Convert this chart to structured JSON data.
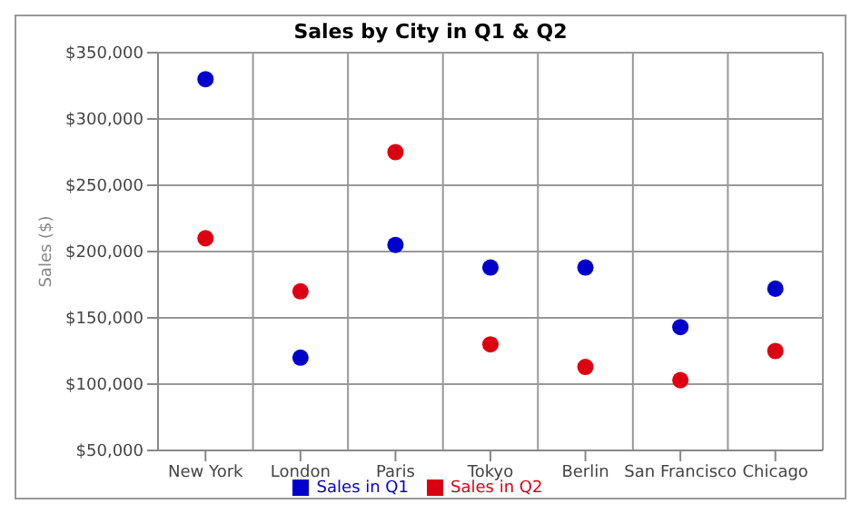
{
  "chart_data": {
    "type": "scatter",
    "title": "Sales by City in Q1 & Q2",
    "ylabel": "Sales ($)",
    "categories": [
      "New York",
      "London",
      "Paris",
      "Tokyo",
      "Berlin",
      "San Francisco",
      "Chicago"
    ],
    "series": [
      {
        "name": "Sales in Q1",
        "color": "#0000cc",
        "values": [
          330000,
          120000,
          205000,
          188000,
          188000,
          143000,
          172000
        ]
      },
      {
        "name": "Sales in Q2",
        "color": "#dd0011",
        "values": [
          210000,
          170000,
          275000,
          130000,
          113000,
          103000,
          125000
        ]
      }
    ],
    "ylim": [
      50000,
      350000
    ],
    "yticks": [
      {
        "value": 50000,
        "label": "$50,000"
      },
      {
        "value": 100000,
        "label": "$100,000"
      },
      {
        "value": 150000,
        "label": "$150,000"
      },
      {
        "value": 200000,
        "label": "$200,000"
      },
      {
        "value": 250000,
        "label": "$250,000"
      },
      {
        "value": 300000,
        "label": "$300,000"
      },
      {
        "value": 350000,
        "label": "$350,000"
      }
    ],
    "grid": true,
    "legend": "bottom",
    "marker": "circle"
  }
}
